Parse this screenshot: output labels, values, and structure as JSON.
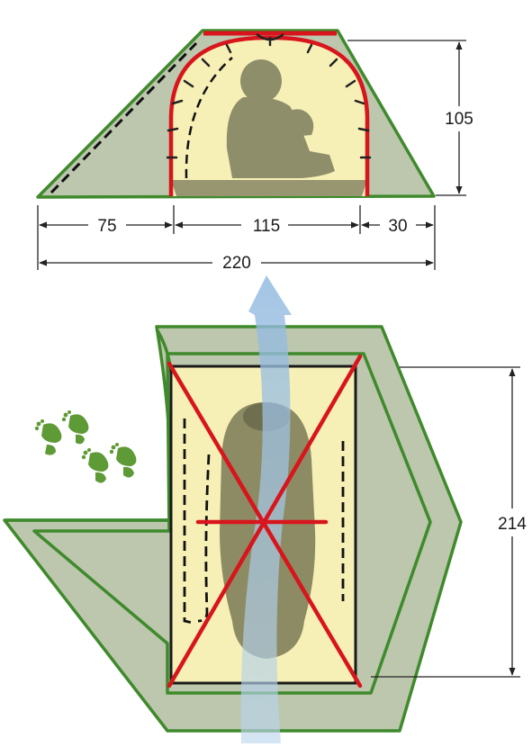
{
  "dimensions": {
    "side_height": "105",
    "vestibule_front": "75",
    "inner_width": "115",
    "vestibule_rear": "30",
    "total_length": "220",
    "floor_length": "214"
  },
  "colors": {
    "fly": "#bcc7ae",
    "fly_outline": "#3f8a2c",
    "inner": "#f6f0b6",
    "pole": "#d8141c",
    "sleeping_bag": "#8c8b63",
    "airflow": "#a9c8e4",
    "footprints": "#5e9a36",
    "dim_line": "#222222"
  },
  "icons": [
    "footprints-icon",
    "sleeping-bag-icon",
    "seated-person-icon",
    "airflow-arrow-icon"
  ]
}
